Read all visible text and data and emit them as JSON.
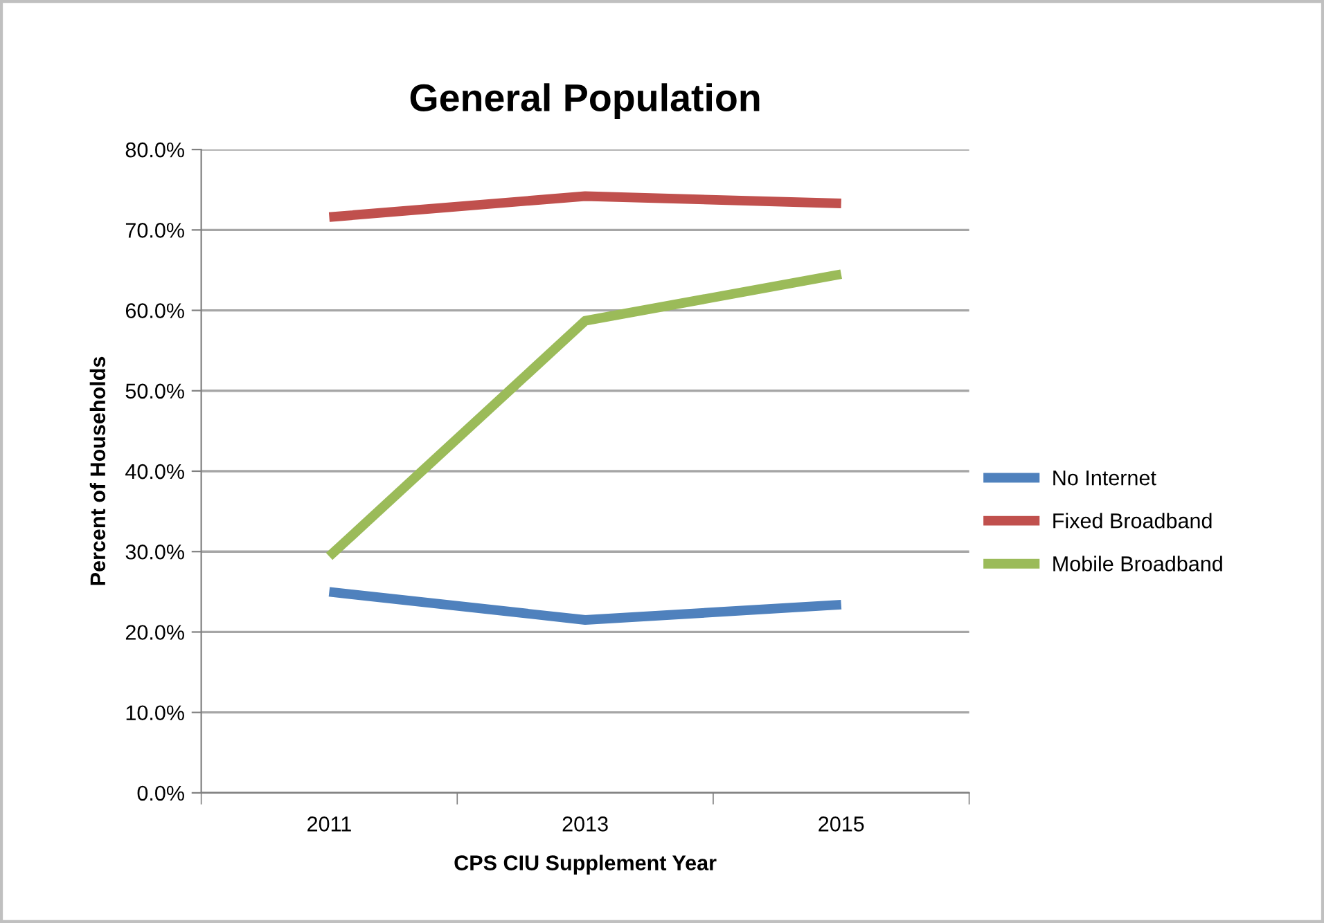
{
  "chart_data": {
    "type": "line",
    "title": "General Population",
    "xlabel": "CPS CIU Supplement Year",
    "ylabel": "Percent of Households",
    "categories": [
      "2011",
      "2013",
      "2015"
    ],
    "series": [
      {
        "name": "No Internet",
        "color": "#4f81bd",
        "values": [
          25.0,
          21.5,
          23.4
        ]
      },
      {
        "name": "Fixed Broadband",
        "color": "#c0504d",
        "values": [
          71.6,
          74.2,
          73.3
        ]
      },
      {
        "name": "Mobile Broadband",
        "color": "#9bbb59",
        "values": [
          29.4,
          58.7,
          64.5
        ]
      }
    ],
    "ylim": [
      0,
      80
    ],
    "yticks": [
      {
        "value": 0,
        "label": "0.0%"
      },
      {
        "value": 10,
        "label": "10.0%"
      },
      {
        "value": 20,
        "label": "20.0%"
      },
      {
        "value": 30,
        "label": "30.0%"
      },
      {
        "value": 40,
        "label": "40.0%"
      },
      {
        "value": 50,
        "label": "50.0%"
      },
      {
        "value": 60,
        "label": "60.0%"
      },
      {
        "value": 70,
        "label": "70.0%"
      },
      {
        "value": 80,
        "label": "80.0%"
      }
    ],
    "grid": "y",
    "legend": "right",
    "marker": "none",
    "line_style": "solid"
  }
}
